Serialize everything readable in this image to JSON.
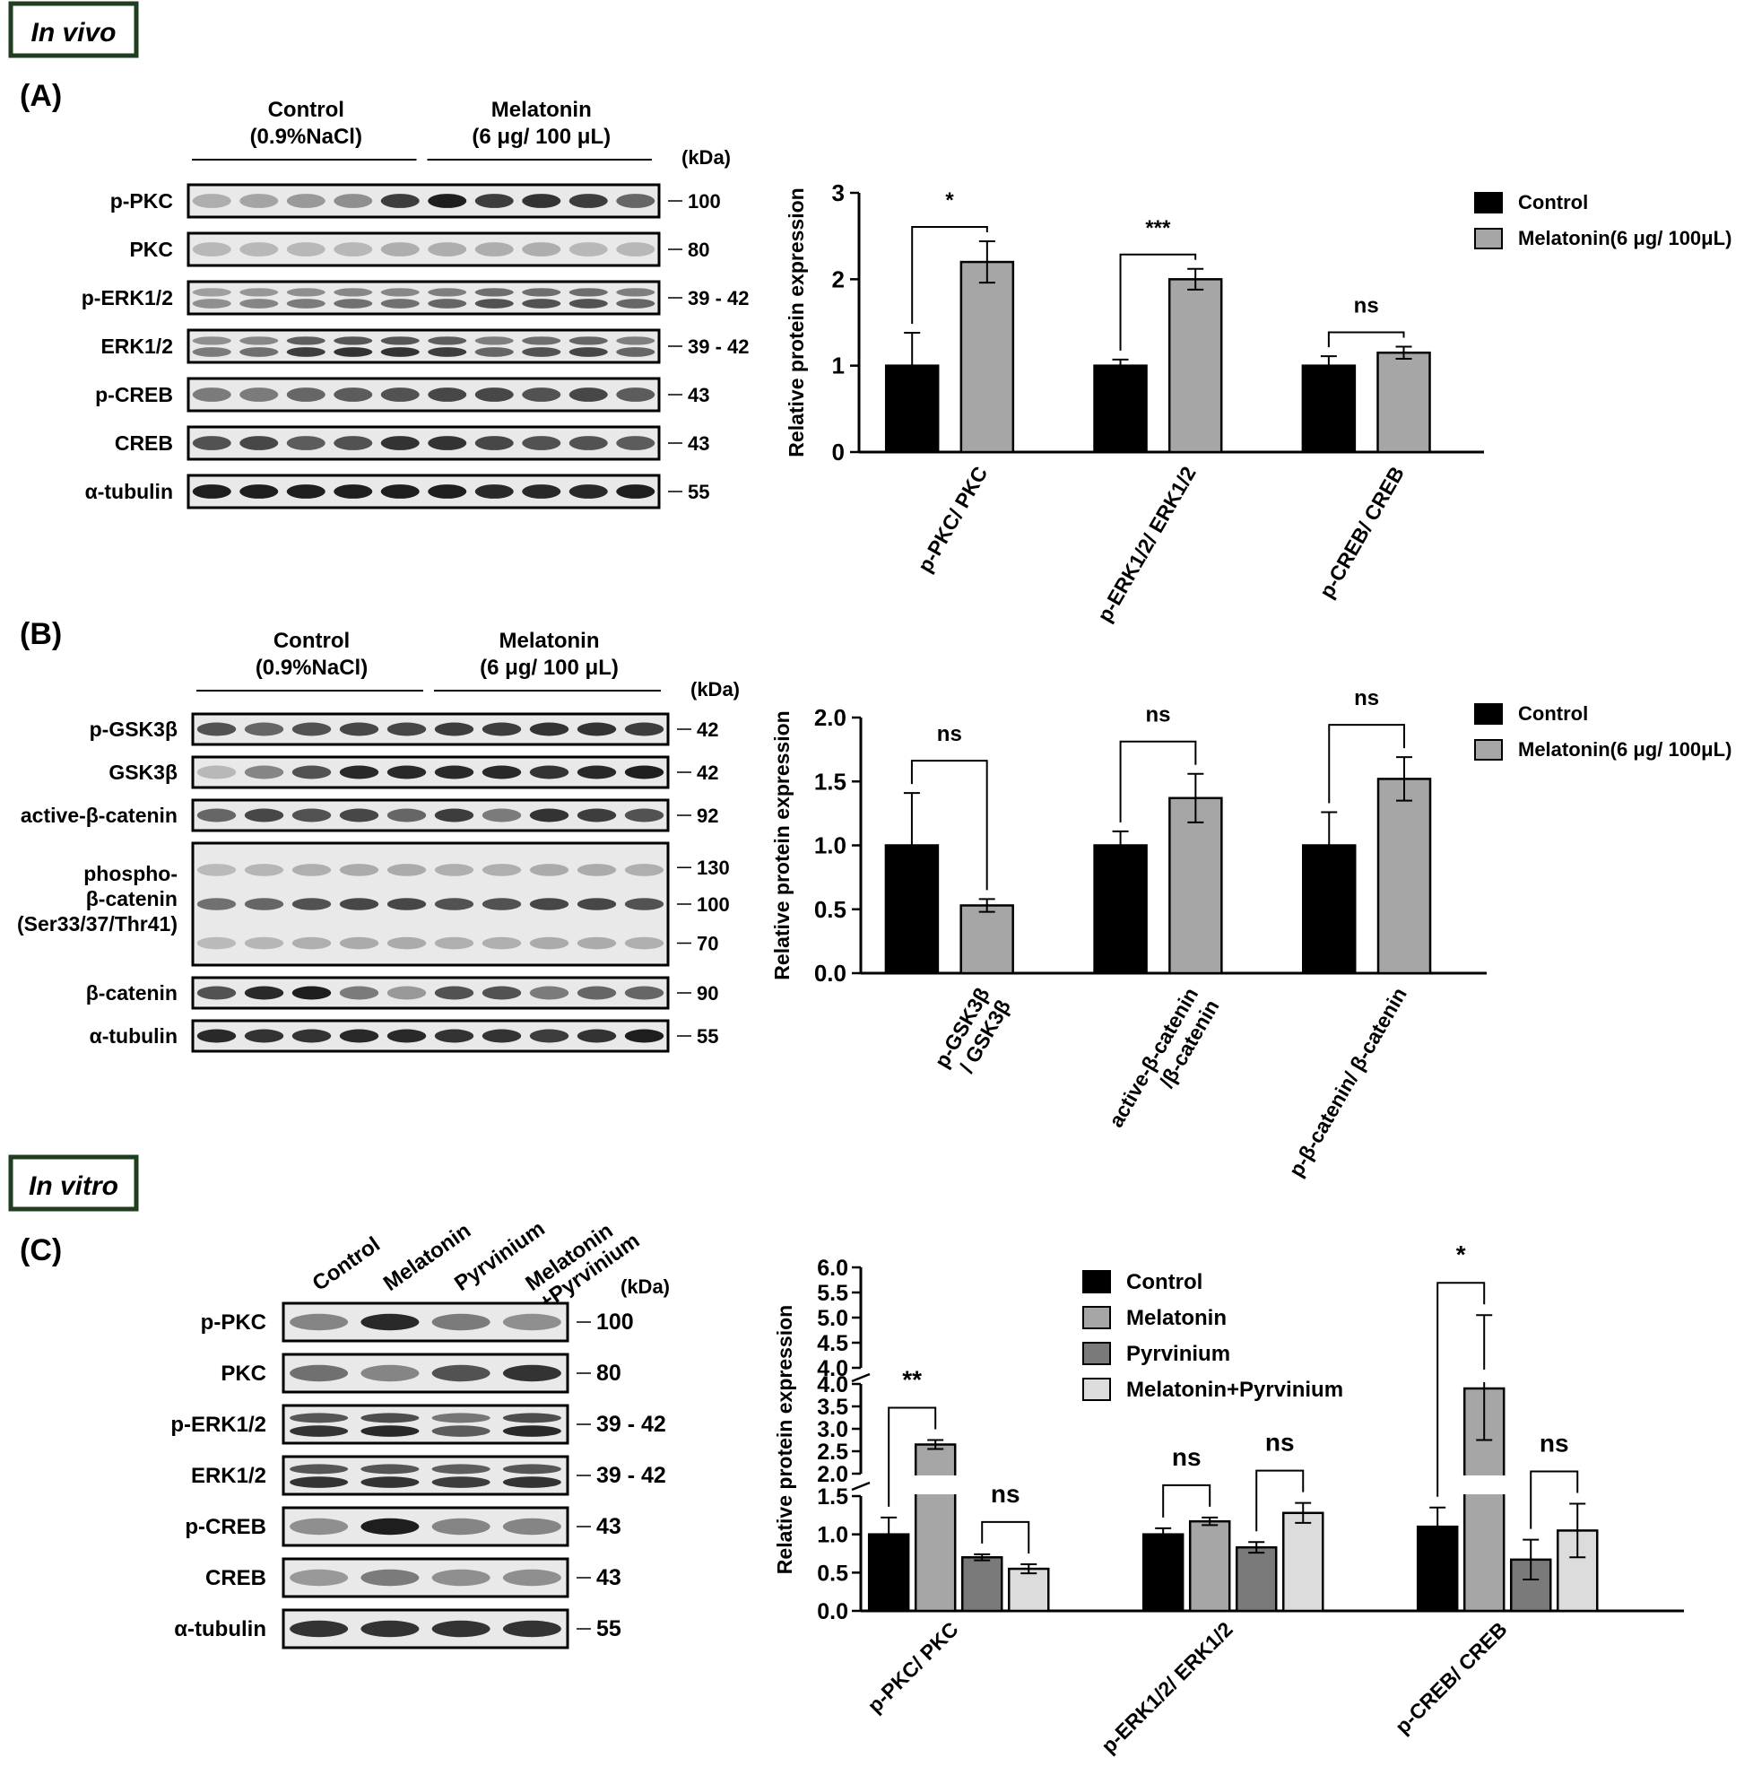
{
  "sections": {
    "in_vivo": "In vivo",
    "in_vitro": "In vitro"
  },
  "colors": {
    "control": "#000000",
    "melatonin": "#a6a6a6",
    "pyrvinium": "#7a7a7a",
    "melatonin_pyrvinium": "#dcdcdc",
    "box_border": "#1f3d1f",
    "band_dark": "#1a1a1a",
    "blot_bg": "#e9e9e9"
  },
  "panels": [
    {
      "label": "(A)",
      "blot": {
        "groups": [
          {
            "name": "Control",
            "sub": "(0.9%NaCl)"
          },
          {
            "name": "Melatonin",
            "sub": "(6 μg/ 100 μL)"
          }
        ],
        "kda_header": "(kDa)",
        "lanes": 10,
        "rows": [
          {
            "label": "p-PKC",
            "kda": [
              "100"
            ],
            "intensity": [
              0.25,
              0.3,
              0.35,
              0.4,
              0.8,
              0.95,
              0.8,
              0.85,
              0.8,
              0.6
            ]
          },
          {
            "label": "PKC",
            "kda": [
              "80"
            ],
            "intensity": [
              0.2,
              0.2,
              0.2,
              0.2,
              0.25,
              0.25,
              0.25,
              0.25,
              0.2,
              0.2
            ]
          },
          {
            "label": "p-ERK1/2",
            "kda": [
              "39 - 42"
            ],
            "intensity": [
              0.4,
              0.45,
              0.5,
              0.55,
              0.55,
              0.6,
              0.7,
              0.7,
              0.7,
              0.6
            ],
            "doublet": true
          },
          {
            "label": "ERK1/2",
            "kda": [
              "39 - 42"
            ],
            "intensity": [
              0.5,
              0.55,
              0.8,
              0.85,
              0.85,
              0.8,
              0.6,
              0.7,
              0.75,
              0.6
            ],
            "doublet": true
          },
          {
            "label": "p-CREB",
            "kda": [
              "43"
            ],
            "intensity": [
              0.5,
              0.5,
              0.6,
              0.65,
              0.7,
              0.75,
              0.75,
              0.7,
              0.75,
              0.65
            ]
          },
          {
            "label": "CREB",
            "kda": [
              "43"
            ],
            "intensity": [
              0.7,
              0.75,
              0.65,
              0.7,
              0.85,
              0.85,
              0.75,
              0.7,
              0.7,
              0.65
            ]
          },
          {
            "label": "α-tubulin",
            "kda": [
              "55"
            ],
            "intensity": [
              0.95,
              0.95,
              0.95,
              0.95,
              0.95,
              0.95,
              0.9,
              0.9,
              0.9,
              0.95
            ]
          }
        ]
      }
    },
    {
      "label": "(B)",
      "blot": {
        "groups": [
          {
            "name": "Control",
            "sub": "(0.9%NaCl)"
          },
          {
            "name": "Melatonin",
            "sub": "(6 μg/ 100 μL)"
          }
        ],
        "kda_header": "(kDa)",
        "lanes": 10,
        "rows": [
          {
            "label": "p-GSK3β",
            "kda": [
              "42"
            ],
            "intensity": [
              0.7,
              0.6,
              0.7,
              0.75,
              0.75,
              0.8,
              0.8,
              0.85,
              0.85,
              0.8
            ]
          },
          {
            "label": "GSK3β",
            "kda": [
              "42"
            ],
            "intensity": [
              0.2,
              0.45,
              0.7,
              0.9,
              0.9,
              0.9,
              0.9,
              0.85,
              0.9,
              0.95
            ]
          },
          {
            "label": "active-β-catenin",
            "kda": [
              "92"
            ],
            "intensity": [
              0.6,
              0.75,
              0.7,
              0.75,
              0.6,
              0.8,
              0.5,
              0.85,
              0.8,
              0.7
            ]
          },
          {
            "label_lines": [
              "phospho-",
              "β-catenin",
              "(Ser33/37/Thr41)"
            ],
            "label": "phospho-β-catenin (Ser33/37/Thr41)",
            "kda": [
              "130",
              "100",
              "70"
            ],
            "intensity": [
              0.55,
              0.6,
              0.7,
              0.75,
              0.75,
              0.7,
              0.7,
              0.75,
              0.75,
              0.7
            ],
            "tall": true
          },
          {
            "label": "β-catenin",
            "kda": [
              "90"
            ],
            "intensity": [
              0.7,
              0.9,
              0.95,
              0.5,
              0.35,
              0.7,
              0.7,
              0.5,
              0.6,
              0.6
            ]
          },
          {
            "label": "α-tubulin",
            "kda": [
              "55"
            ],
            "intensity": [
              0.9,
              0.85,
              0.85,
              0.9,
              0.9,
              0.85,
              0.85,
              0.8,
              0.85,
              0.95
            ]
          }
        ]
      }
    },
    {
      "label": "(C)",
      "blot": {
        "lane_labels": [
          "Control",
          "Melatonin",
          "Pyrvinium",
          "Melatonin\n+Pyrvinium"
        ],
        "kda_header": "(kDa)",
        "lanes": 4,
        "rows": [
          {
            "label": "p-PKC",
            "kda": [
              "100"
            ],
            "intensity": [
              0.45,
              0.9,
              0.5,
              0.4
            ]
          },
          {
            "label": "PKC",
            "kda": [
              "80"
            ],
            "intensity": [
              0.55,
              0.45,
              0.7,
              0.85
            ]
          },
          {
            "label": "p-ERK1/2",
            "kda": [
              "39 - 42"
            ],
            "intensity": [
              0.85,
              0.9,
              0.65,
              0.9
            ],
            "doublet": true
          },
          {
            "label": "ERK1/2",
            "kda": [
              "39 - 42"
            ],
            "intensity": [
              0.85,
              0.85,
              0.8,
              0.85
            ],
            "doublet": true
          },
          {
            "label": "p-CREB",
            "kda": [
              "43"
            ],
            "intensity": [
              0.4,
              0.95,
              0.45,
              0.45
            ]
          },
          {
            "label": "CREB",
            "kda": [
              "43"
            ],
            "intensity": [
              0.35,
              0.5,
              0.4,
              0.4
            ]
          },
          {
            "label": "α-tubulin",
            "kda": [
              "55"
            ],
            "intensity": [
              0.85,
              0.85,
              0.85,
              0.85
            ]
          }
        ]
      }
    }
  ],
  "chart_data": [
    {
      "type": "bar",
      "panel": "(A)",
      "ylabel": "Relative protein expression",
      "ylim": [
        0,
        3
      ],
      "yticks": [
        "0",
        "1",
        "2",
        "3"
      ],
      "categories": [
        "p-PKC/ PKC",
        "p-ERK1/2/ ERK1/2",
        "p-CREB/ CREB"
      ],
      "series": [
        {
          "name": "Control",
          "values": [
            1.0,
            1.0,
            1.0
          ],
          "errors": [
            0.38,
            0.07,
            0.11
          ]
        },
        {
          "name": "Melatonin(6 μg/ 100μL)",
          "values": [
            2.2,
            2.0,
            1.15
          ],
          "errors": [
            0.24,
            0.12,
            0.07
          ]
        }
      ],
      "significance": [
        "*",
        "***",
        "ns"
      ],
      "legend": "top-right"
    },
    {
      "type": "bar",
      "panel": "(B)",
      "ylabel": "Relative protein expression",
      "ylim": [
        0,
        2.0
      ],
      "yticks": [
        "0.0",
        "0.5",
        "1.0",
        "1.5",
        "2.0"
      ],
      "categories": [
        "p-GSK3β\n/ GSK3β",
        "active-β-catenin\n/β-catenin",
        "p-β-catenin/ β-catenin"
      ],
      "series": [
        {
          "name": "Control",
          "values": [
            1.0,
            1.0,
            1.0
          ],
          "errors": [
            0.41,
            0.11,
            0.26
          ]
        },
        {
          "name": "Melatonin(6 μg/ 100μL)",
          "values": [
            0.53,
            1.37,
            1.52
          ],
          "errors": [
            0.05,
            0.19,
            0.17
          ]
        }
      ],
      "significance": [
        "ns",
        "ns",
        "ns"
      ],
      "legend": "top-right"
    },
    {
      "type": "bar",
      "panel": "(C)",
      "ylabel": "Relative protein expression",
      "ylim": [
        0,
        6.0
      ],
      "axis_break": true,
      "yticks_low": [
        "0.0",
        "0.5",
        "1.0",
        "1.5"
      ],
      "yticks_mid": [
        "2.0",
        "2.5",
        "3.0",
        "3.5",
        "4.0"
      ],
      "yticks_high": [
        "4.0",
        "4.5",
        "5.0",
        "5.5",
        "6.0"
      ],
      "categories": [
        "p-PKC/ PKC",
        "p-ERK1/2/ ERK1/2",
        "p-CREB/ CREB"
      ],
      "series": [
        {
          "name": "Control",
          "values": [
            1.0,
            1.0,
            1.1
          ],
          "errors": [
            0.22,
            0.08,
            0.25
          ]
        },
        {
          "name": "Melatonin",
          "values": [
            2.65,
            1.17,
            3.9
          ],
          "errors": [
            0.1,
            0.05,
            1.15
          ]
        },
        {
          "name": "Pyrvinium",
          "values": [
            0.7,
            0.83,
            0.67
          ],
          "errors": [
            0.04,
            0.07,
            0.26
          ]
        },
        {
          "name": "Melatonin+Pyrvinium",
          "values": [
            0.55,
            1.28,
            1.05
          ],
          "errors": [
            0.06,
            0.13,
            0.35
          ]
        }
      ],
      "significance": [
        "**",
        "ns",
        "ns",
        "ns",
        "*",
        "ns"
      ],
      "legend": "top-center"
    }
  ]
}
